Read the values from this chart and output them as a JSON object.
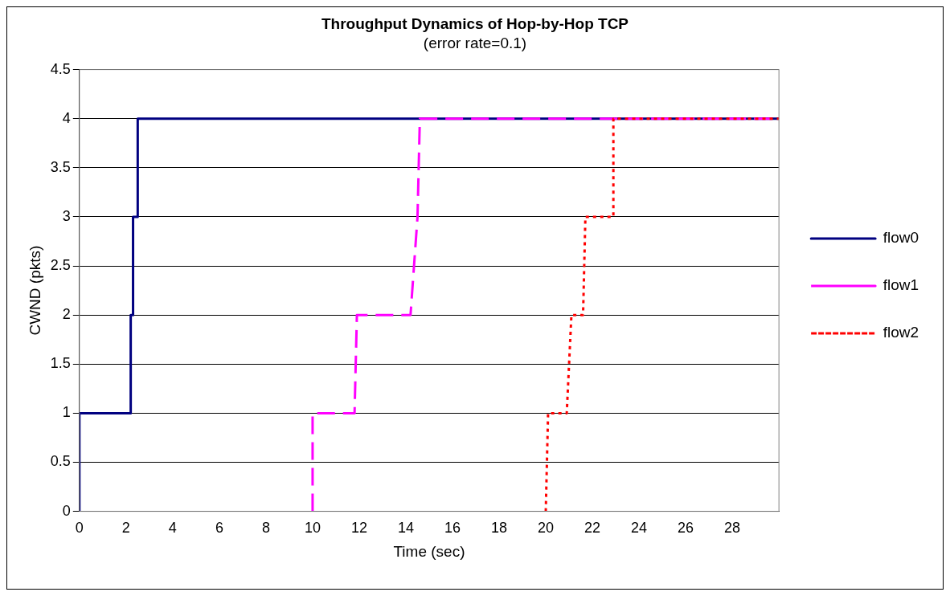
{
  "chart_data": {
    "type": "line",
    "title": "Throughput Dynamics of Hop-by-Hop TCP",
    "subtitle": "(error rate=0.1)",
    "xlabel": "Time (sec)",
    "ylabel": "CWND (pkts)",
    "xlim": [
      0,
      30
    ],
    "xticks": [
      0,
      2,
      4,
      6,
      8,
      10,
      12,
      14,
      16,
      18,
      20,
      22,
      24,
      26,
      28
    ],
    "ylim": [
      0,
      4.5
    ],
    "yticks": [
      0,
      0.5,
      1,
      1.5,
      2,
      2.5,
      3,
      3.5,
      4,
      4.5
    ],
    "grid": "y",
    "legend": "right",
    "marker": "none",
    "series": [
      {
        "name": "flow0",
        "color": "#000080",
        "line_style": "solid",
        "x": [
          0,
          0,
          2.2,
          2.2,
          2.3,
          2.3,
          2.5,
          2.5,
          30
        ],
        "values": [
          0,
          1,
          1,
          2,
          2,
          3,
          3,
          4,
          4
        ]
      },
      {
        "name": "flow1",
        "color": "#ff00ff",
        "line_style": "dashed",
        "x": [
          10,
          10,
          11.8,
          11.9,
          14.2,
          14.5,
          14.6,
          30
        ],
        "values": [
          0,
          1,
          1,
          2,
          2,
          3,
          4,
          4
        ]
      },
      {
        "name": "flow2",
        "color": "#ff0000",
        "line_style": "dotted",
        "x": [
          20,
          20.1,
          20.9,
          21.1,
          21.6,
          21.7,
          22.9,
          22.9,
          30
        ],
        "values": [
          0,
          1,
          1,
          2,
          2,
          3,
          3,
          4,
          4
        ]
      }
    ]
  }
}
